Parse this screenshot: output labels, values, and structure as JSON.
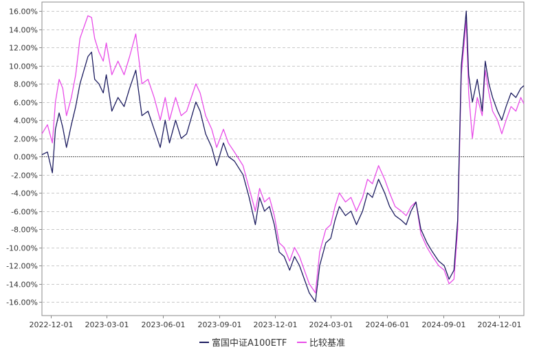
{
  "chart_data": {
    "type": "line",
    "y_unit": "%",
    "ylim": [
      -17.5,
      17.0
    ],
    "y_ticks": [
      16,
      14,
      12,
      10,
      8,
      6,
      4,
      2,
      0,
      -2,
      -4,
      -6,
      -8,
      -10,
      -12,
      -14,
      -16
    ],
    "y_tick_labels": [
      "16.00%",
      "14.00%",
      "12.00%",
      "10.00%",
      "8.00%",
      "6.00%",
      "4.00%",
      "2.00%",
      "0.00%",
      "-2.00%",
      "-4.00%",
      "-6.00%",
      "-8.00%",
      "-10.00%",
      "-12.00%",
      "-14.00%",
      "-16.00%"
    ],
    "xlim": [
      "2022-11-16",
      "2025-01-10"
    ],
    "x_ticks": [
      "2022-12-01",
      "2023-03-01",
      "2023-06-01",
      "2023-09-01",
      "2023-12-01",
      "2024-03-01",
      "2024-06-01",
      "2024-09-01",
      "2024-12-01"
    ],
    "x_tick_labels": [
      "2022-12-01",
      "2023-03-01",
      "2023-06-01",
      "2023-09-01",
      "2023-12-01",
      "2024-03-01",
      "2024-06-01",
      "2024-09-01",
      "2024-12-01"
    ],
    "grid": true,
    "zero_line": true,
    "legend_position": "bottom-center",
    "series": [
      {
        "name": "富国中证A100ETF",
        "color": "#1a1a5e",
        "points": [
          [
            "2022-11-16",
            0.2
          ],
          [
            "2022-11-25",
            0.5
          ],
          [
            "2022-12-03",
            -1.8
          ],
          [
            "2022-12-08",
            3.0
          ],
          [
            "2022-12-14",
            4.8
          ],
          [
            "2022-12-20",
            3.2
          ],
          [
            "2022-12-26",
            1.0
          ],
          [
            "2023-01-03",
            3.5
          ],
          [
            "2023-01-10",
            5.5
          ],
          [
            "2023-01-17",
            8.0
          ],
          [
            "2023-01-30",
            11.0
          ],
          [
            "2023-02-05",
            11.5
          ],
          [
            "2023-02-10",
            8.5
          ],
          [
            "2023-02-17",
            8.0
          ],
          [
            "2023-02-24",
            7.0
          ],
          [
            "2023-03-01",
            9.0
          ],
          [
            "2023-03-10",
            5.0
          ],
          [
            "2023-03-20",
            6.5
          ],
          [
            "2023-03-30",
            5.5
          ],
          [
            "2023-04-08",
            7.5
          ],
          [
            "2023-04-18",
            9.5
          ],
          [
            "2023-04-28",
            4.5
          ],
          [
            "2023-05-08",
            5.0
          ],
          [
            "2023-05-18",
            3.0
          ],
          [
            "2023-05-28",
            1.0
          ],
          [
            "2023-06-05",
            4.0
          ],
          [
            "2023-06-12",
            1.5
          ],
          [
            "2023-06-22",
            4.0
          ],
          [
            "2023-07-01",
            2.0
          ],
          [
            "2023-07-10",
            2.5
          ],
          [
            "2023-07-25",
            6.0
          ],
          [
            "2023-08-01",
            5.0
          ],
          [
            "2023-08-10",
            2.5
          ],
          [
            "2023-08-20",
            1.0
          ],
          [
            "2023-08-28",
            -1.0
          ],
          [
            "2023-09-08",
            1.5
          ],
          [
            "2023-09-16",
            0.0
          ],
          [
            "2023-09-26",
            -0.5
          ],
          [
            "2023-10-10",
            -2.0
          ],
          [
            "2023-10-20",
            -4.5
          ],
          [
            "2023-10-30",
            -7.5
          ],
          [
            "2023-11-06",
            -4.5
          ],
          [
            "2023-11-14",
            -6.0
          ],
          [
            "2023-11-22",
            -5.5
          ],
          [
            "2023-11-30",
            -7.5
          ],
          [
            "2023-12-08",
            -10.5
          ],
          [
            "2023-12-16",
            -11.0
          ],
          [
            "2023-12-25",
            -12.5
          ],
          [
            "2024-01-02",
            -11.0
          ],
          [
            "2024-01-10",
            -12.0
          ],
          [
            "2024-01-18",
            -13.5
          ],
          [
            "2024-01-26",
            -15.0
          ],
          [
            "2024-02-05",
            -16.0
          ],
          [
            "2024-02-12",
            -12.0
          ],
          [
            "2024-02-22",
            -9.5
          ],
          [
            "2024-03-01",
            -9.0
          ],
          [
            "2024-03-08",
            -7.0
          ],
          [
            "2024-03-15",
            -5.5
          ],
          [
            "2024-03-25",
            -6.5
          ],
          [
            "2024-04-03",
            -6.0
          ],
          [
            "2024-04-12",
            -7.5
          ],
          [
            "2024-04-22",
            -6.0
          ],
          [
            "2024-04-30",
            -4.0
          ],
          [
            "2024-05-08",
            -4.5
          ],
          [
            "2024-05-18",
            -2.5
          ],
          [
            "2024-05-28",
            -4.0
          ],
          [
            "2024-06-05",
            -5.5
          ],
          [
            "2024-06-14",
            -6.5
          ],
          [
            "2024-06-24",
            -7.0
          ],
          [
            "2024-07-02",
            -7.5
          ],
          [
            "2024-07-10",
            -6.0
          ],
          [
            "2024-07-18",
            -5.0
          ],
          [
            "2024-07-26",
            -8.0
          ],
          [
            "2024-08-05",
            -9.5
          ],
          [
            "2024-08-14",
            -10.5
          ],
          [
            "2024-08-24",
            -11.5
          ],
          [
            "2024-09-02",
            -12.0
          ],
          [
            "2024-09-10",
            -13.5
          ],
          [
            "2024-09-18",
            -12.5
          ],
          [
            "2024-09-24",
            -7.0
          ],
          [
            "2024-09-30",
            10.0
          ],
          [
            "2024-10-08",
            16.0
          ],
          [
            "2024-10-12",
            9.0
          ],
          [
            "2024-10-18",
            6.0
          ],
          [
            "2024-10-26",
            8.5
          ],
          [
            "2024-11-03",
            5.0
          ],
          [
            "2024-11-08",
            10.5
          ],
          [
            "2024-11-14",
            8.0
          ],
          [
            "2024-11-20",
            6.5
          ],
          [
            "2024-11-28",
            5.0
          ],
          [
            "2024-12-05",
            4.0
          ],
          [
            "2024-12-12",
            5.5
          ],
          [
            "2024-12-20",
            7.0
          ],
          [
            "2024-12-28",
            6.5
          ],
          [
            "2025-01-05",
            7.5
          ],
          [
            "2025-01-10",
            7.8
          ]
        ]
      },
      {
        "name": "比较基准",
        "color": "#e84be8",
        "points": [
          [
            "2022-11-16",
            2.5
          ],
          [
            "2022-11-25",
            3.5
          ],
          [
            "2022-12-03",
            1.5
          ],
          [
            "2022-12-08",
            6.0
          ],
          [
            "2022-12-14",
            8.5
          ],
          [
            "2022-12-20",
            7.5
          ],
          [
            "2022-12-26",
            4.5
          ],
          [
            "2023-01-03",
            6.5
          ],
          [
            "2023-01-10",
            9.0
          ],
          [
            "2023-01-17",
            13.0
          ],
          [
            "2023-01-30",
            15.5
          ],
          [
            "2023-02-05",
            15.3
          ],
          [
            "2023-02-10",
            13.0
          ],
          [
            "2023-02-17",
            11.5
          ],
          [
            "2023-02-24",
            10.5
          ],
          [
            "2023-03-01",
            12.5
          ],
          [
            "2023-03-10",
            9.0
          ],
          [
            "2023-03-20",
            10.5
          ],
          [
            "2023-03-30",
            9.0
          ],
          [
            "2023-04-08",
            11.0
          ],
          [
            "2023-04-18",
            13.5
          ],
          [
            "2023-04-28",
            8.0
          ],
          [
            "2023-05-08",
            8.5
          ],
          [
            "2023-05-18",
            6.5
          ],
          [
            "2023-05-28",
            4.0
          ],
          [
            "2023-06-05",
            6.5
          ],
          [
            "2023-06-12",
            4.0
          ],
          [
            "2023-06-22",
            6.5
          ],
          [
            "2023-07-01",
            4.5
          ],
          [
            "2023-07-10",
            5.0
          ],
          [
            "2023-07-25",
            8.0
          ],
          [
            "2023-08-01",
            7.0
          ],
          [
            "2023-08-10",
            4.5
          ],
          [
            "2023-08-20",
            3.0
          ],
          [
            "2023-08-28",
            1.0
          ],
          [
            "2023-09-08",
            3.0
          ],
          [
            "2023-09-16",
            1.5
          ],
          [
            "2023-09-26",
            0.5
          ],
          [
            "2023-10-10",
            -1.0
          ],
          [
            "2023-10-20",
            -3.5
          ],
          [
            "2023-10-30",
            -6.0
          ],
          [
            "2023-11-06",
            -3.5
          ],
          [
            "2023-11-14",
            -5.0
          ],
          [
            "2023-11-22",
            -4.5
          ],
          [
            "2023-11-30",
            -6.5
          ],
          [
            "2023-12-08",
            -9.5
          ],
          [
            "2023-12-16",
            -10.0
          ],
          [
            "2023-12-25",
            -11.5
          ],
          [
            "2024-01-02",
            -10.0
          ],
          [
            "2024-01-10",
            -11.0
          ],
          [
            "2024-01-18",
            -12.5
          ],
          [
            "2024-01-26",
            -14.0
          ],
          [
            "2024-02-05",
            -15.0
          ],
          [
            "2024-02-12",
            -10.5
          ],
          [
            "2024-02-22",
            -8.0
          ],
          [
            "2024-03-01",
            -7.5
          ],
          [
            "2024-03-08",
            -5.5
          ],
          [
            "2024-03-15",
            -4.0
          ],
          [
            "2024-03-25",
            -5.0
          ],
          [
            "2024-04-03",
            -4.5
          ],
          [
            "2024-04-12",
            -6.0
          ],
          [
            "2024-04-22",
            -4.5
          ],
          [
            "2024-04-30",
            -2.5
          ],
          [
            "2024-05-08",
            -3.0
          ],
          [
            "2024-05-18",
            -1.0
          ],
          [
            "2024-05-28",
            -2.5
          ],
          [
            "2024-06-05",
            -4.0
          ],
          [
            "2024-06-14",
            -5.5
          ],
          [
            "2024-06-24",
            -6.0
          ],
          [
            "2024-07-02",
            -6.5
          ],
          [
            "2024-07-10",
            -5.5
          ],
          [
            "2024-07-18",
            -5.0
          ],
          [
            "2024-07-26",
            -8.5
          ],
          [
            "2024-08-05",
            -10.0
          ],
          [
            "2024-08-14",
            -11.0
          ],
          [
            "2024-08-24",
            -12.0
          ],
          [
            "2024-09-02",
            -12.5
          ],
          [
            "2024-09-10",
            -14.0
          ],
          [
            "2024-09-18",
            -13.5
          ],
          [
            "2024-09-24",
            -8.0
          ],
          [
            "2024-09-30",
            9.0
          ],
          [
            "2024-10-08",
            15.0
          ],
          [
            "2024-10-12",
            7.0
          ],
          [
            "2024-10-18",
            2.0
          ],
          [
            "2024-10-26",
            6.5
          ],
          [
            "2024-11-03",
            4.5
          ],
          [
            "2024-11-08",
            9.5
          ],
          [
            "2024-11-14",
            7.0
          ],
          [
            "2024-11-20",
            5.0
          ],
          [
            "2024-11-28",
            4.0
          ],
          [
            "2024-12-05",
            2.5
          ],
          [
            "2024-12-12",
            4.0
          ],
          [
            "2024-12-20",
            5.5
          ],
          [
            "2024-12-28",
            5.0
          ],
          [
            "2025-01-05",
            6.5
          ],
          [
            "2025-01-10",
            5.8
          ]
        ]
      }
    ]
  },
  "legend": {
    "items": [
      {
        "label": "富国中证A100ETF",
        "color": "#1a1a5e"
      },
      {
        "label": "比较基准",
        "color": "#e84be8"
      }
    ]
  }
}
